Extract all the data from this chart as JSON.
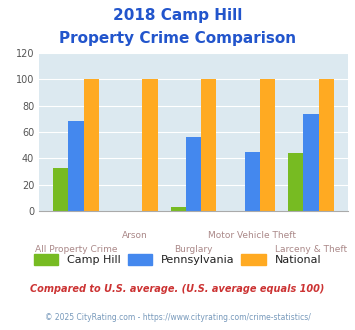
{
  "title_line1": "2018 Camp Hill",
  "title_line2": "Property Crime Comparison",
  "categories": [
    "All Property Crime",
    "Arson",
    "Burglary",
    "Motor Vehicle Theft",
    "Larceny & Theft"
  ],
  "camp_hill": [
    33,
    0,
    3,
    0,
    44
  ],
  "pennsylvania": [
    68,
    0,
    56,
    45,
    74
  ],
  "national": [
    100,
    100,
    100,
    100,
    100
  ],
  "color_camp_hill": "#77bb22",
  "color_pennsylvania": "#4488ee",
  "color_national": "#ffaa22",
  "color_background": "#dce9f0",
  "ylim": [
    0,
    120
  ],
  "yticks": [
    0,
    20,
    40,
    60,
    80,
    100,
    120
  ],
  "xlabel_color": "#aa8888",
  "title_color": "#2255cc",
  "legend_text_color": "#222222",
  "footnote1": "Compared to U.S. average. (U.S. average equals 100)",
  "footnote2": "© 2025 CityRating.com - https://www.cityrating.com/crime-statistics/",
  "footnote1_color": "#cc3333",
  "footnote2_color": "#7799bb",
  "upper_labels": [
    "",
    "Arson",
    "",
    "Motor Vehicle Theft",
    ""
  ],
  "lower_labels": [
    "All Property Crime",
    "",
    "Burglary",
    "",
    "Larceny & Theft"
  ]
}
